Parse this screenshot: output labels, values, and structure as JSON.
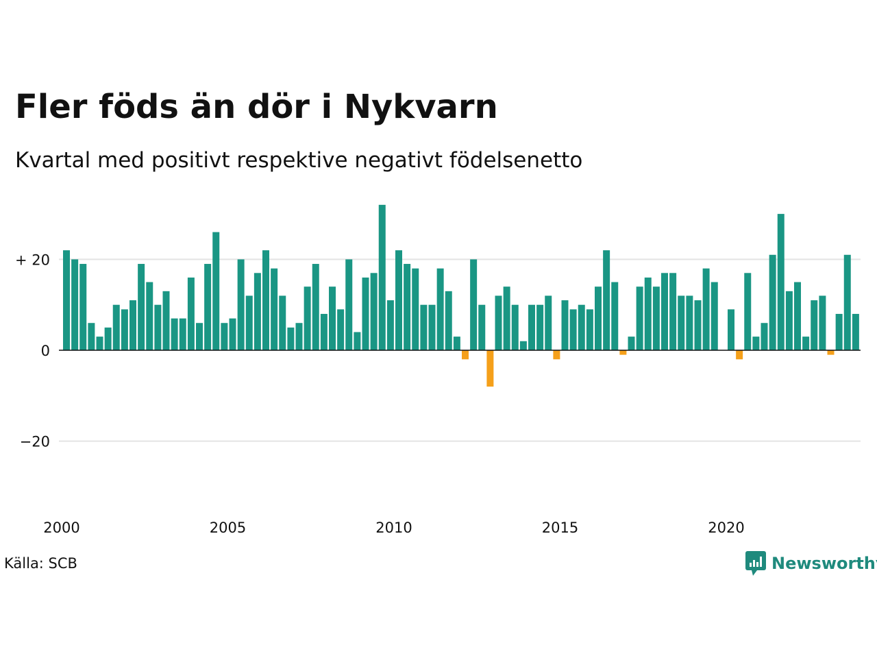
{
  "header": {
    "title": "Fler föds än dör i Nykvarn",
    "subtitle": "Kvartal med positivt respektive negativt födelsenetto"
  },
  "footer": {
    "source": "Källa: SCB",
    "brand": "Newsworthy"
  },
  "colors": {
    "positive": "#1a9684",
    "negative": "#f5a01a",
    "gridline": "#e3e3e3",
    "zeroline": "#111111",
    "brand": "#1f8a7d"
  },
  "chart_data": {
    "type": "bar",
    "title": "Fler föds än dör i Nykvarn",
    "subtitle": "Kvartal med positivt respektive negativt födelsenetto",
    "xlabel": "",
    "ylabel": "",
    "x_start": "2000-Q1",
    "x_ticks": [
      "2000",
      "2005",
      "2010",
      "2015",
      "2020"
    ],
    "y_ticks": [
      {
        "value": 20,
        "label": "+ 20"
      },
      {
        "value": 0,
        "label": "0"
      },
      {
        "value": -20,
        "label": "−20"
      }
    ],
    "ylim": [
      -37,
      32
    ],
    "grid": true,
    "values": [
      22,
      20,
      19,
      6,
      3,
      5,
      10,
      9,
      11,
      19,
      15,
      10,
      13,
      7,
      7,
      16,
      6,
      19,
      26,
      6,
      7,
      20,
      12,
      17,
      22,
      18,
      12,
      5,
      6,
      14,
      19,
      8,
      14,
      9,
      20,
      4,
      16,
      17,
      32,
      11,
      22,
      19,
      18,
      10,
      10,
      18,
      13,
      3,
      -2,
      20,
      10,
      -8,
      12,
      14,
      10,
      2,
      10,
      10,
      12,
      -2,
      11,
      9,
      10,
      9,
      14,
      22,
      15,
      -1,
      3,
      14,
      16,
      14,
      17,
      17,
      12,
      12,
      11,
      18,
      15,
      0,
      9,
      -2,
      17,
      3,
      6,
      21,
      30,
      13,
      15,
      3,
      11,
      12,
      -1,
      8,
      21,
      8
    ]
  }
}
